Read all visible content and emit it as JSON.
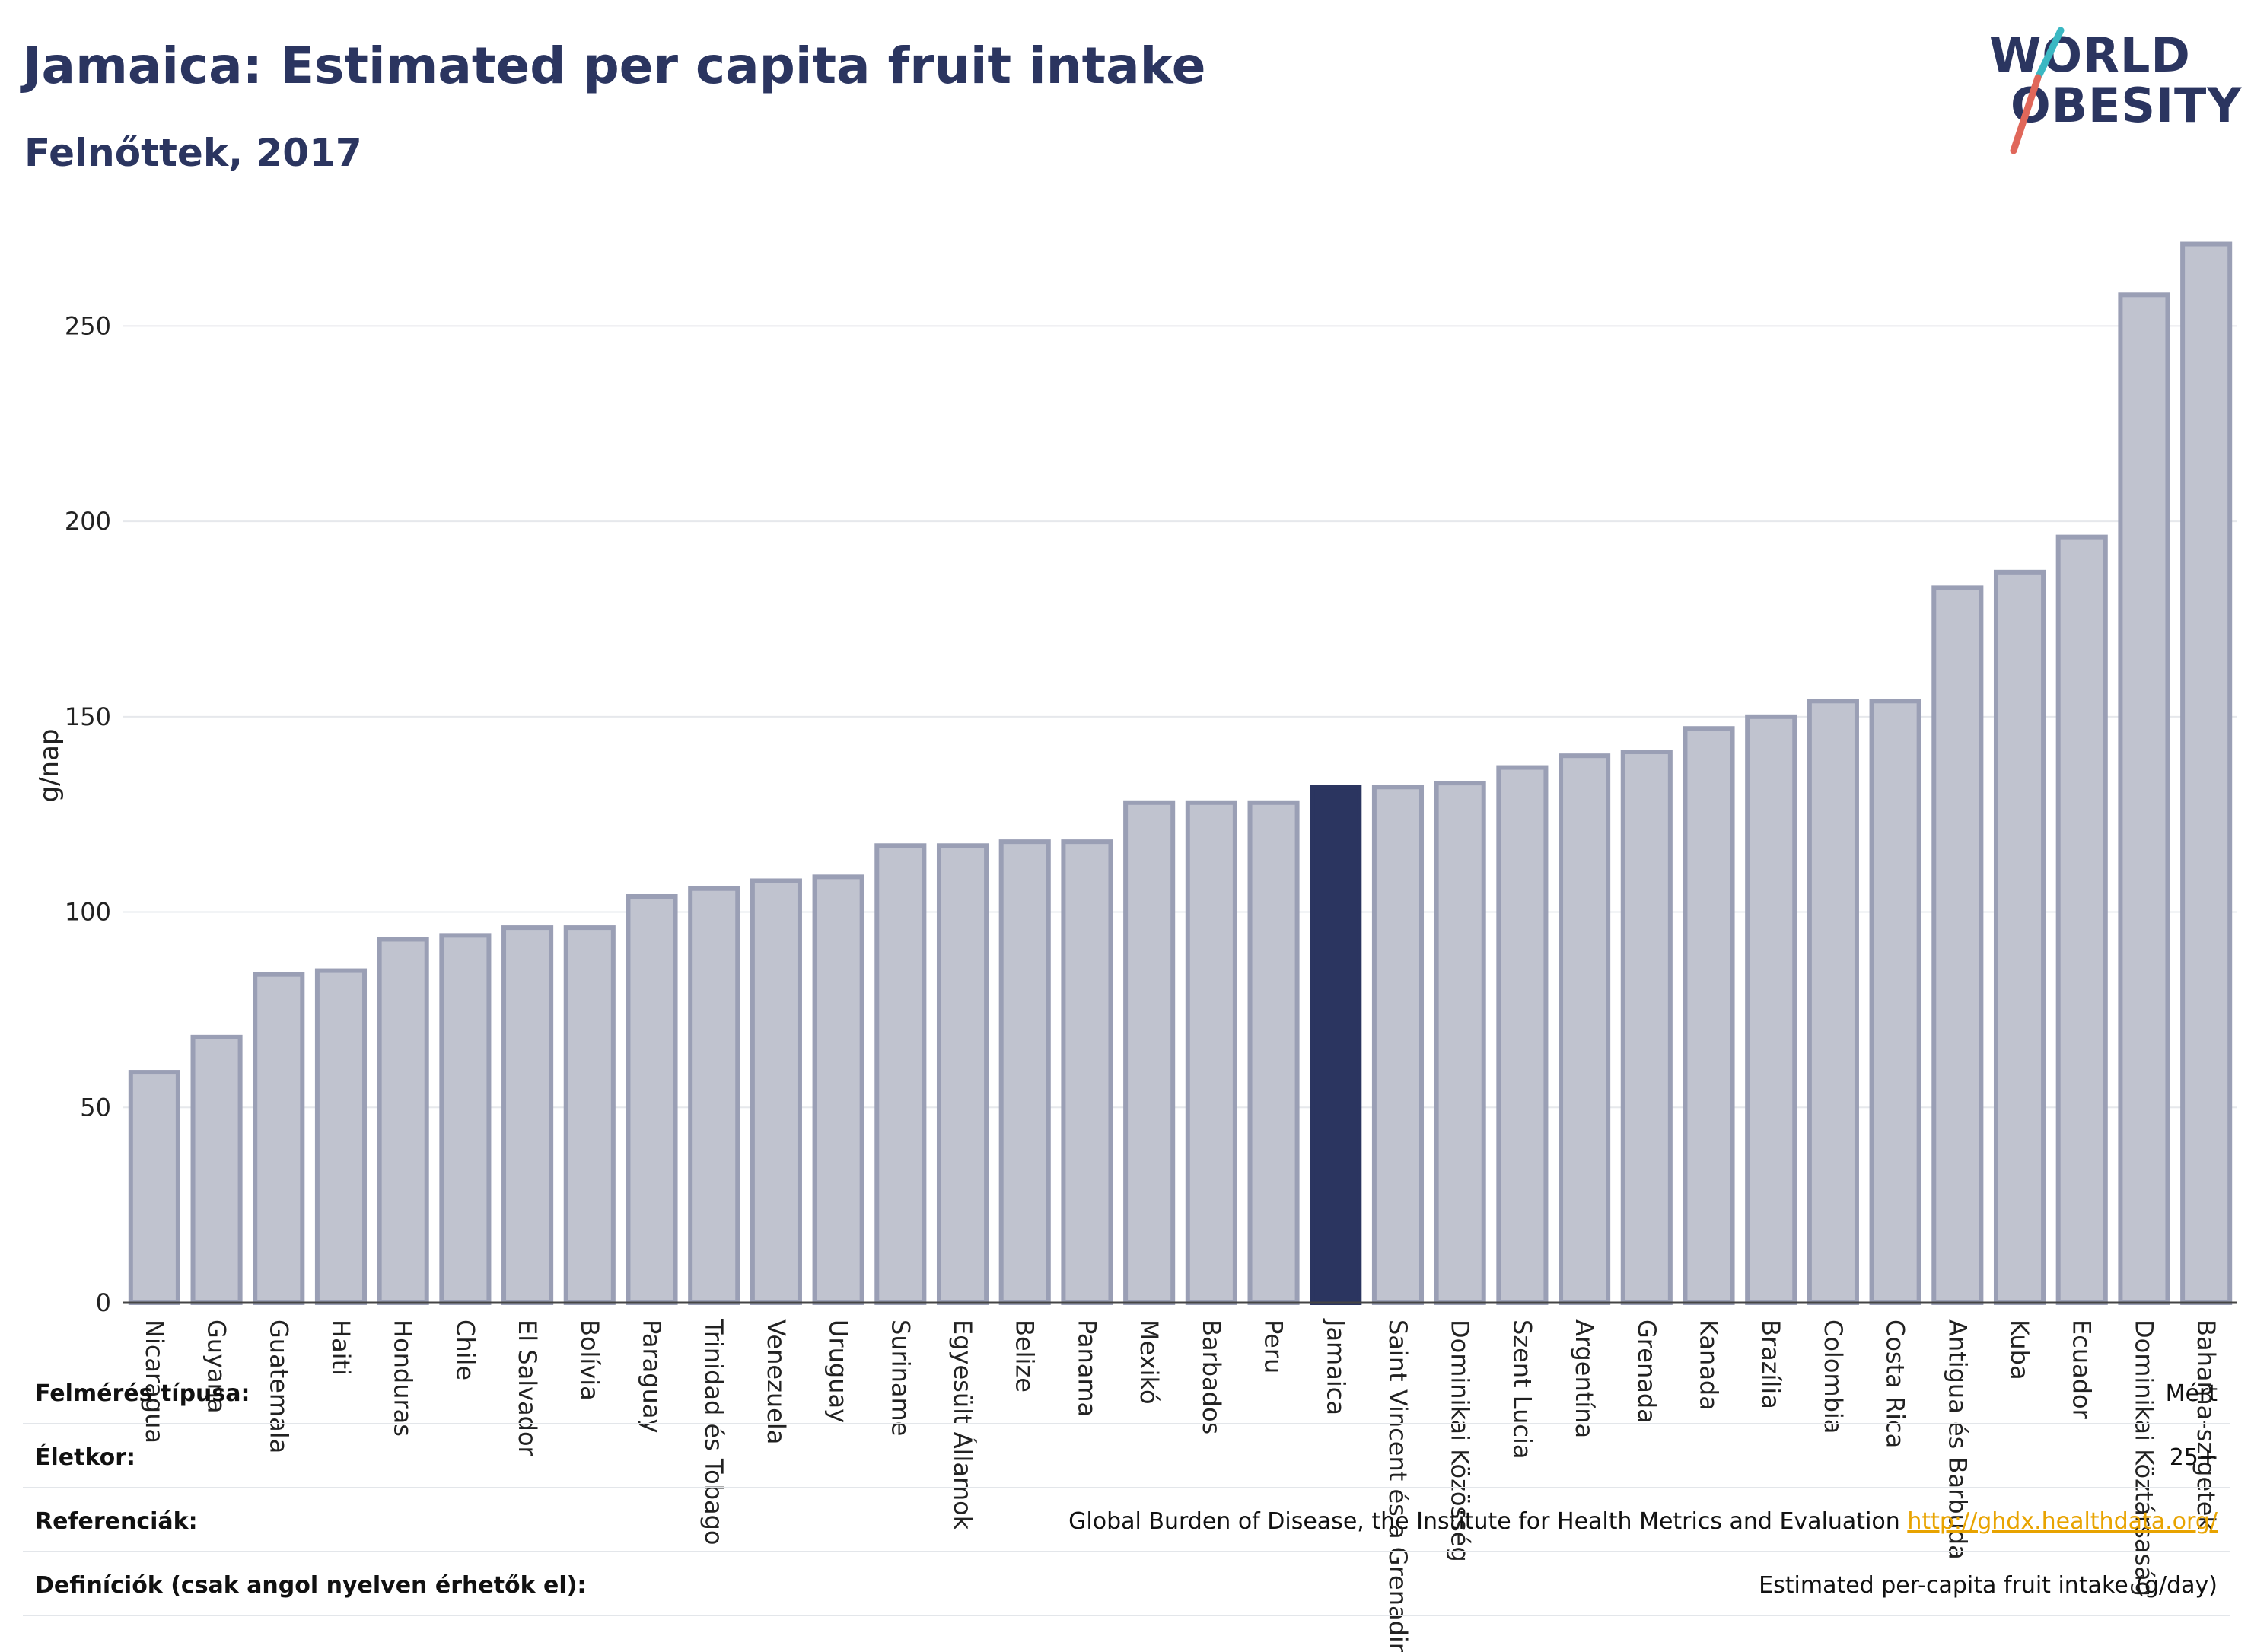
{
  "header": {
    "title": "Jamaica: Estimated per capita fruit intake",
    "subtitle": "Felnőttek, 2017"
  },
  "logo": {
    "line1": "WORLD",
    "line2": "OBESITY"
  },
  "colors": {
    "highlight_bar": "#2b3560",
    "bar": "#c0c3cf",
    "bar_stroke": "#9a9fb5",
    "logo_slash_teal": "#3bb8c3",
    "logo_slash_coral": "#e0675a"
  },
  "chart_data": {
    "type": "bar",
    "ylabel": "g/nap",
    "ylim": [
      0,
      275
    ],
    "yticks": [
      0,
      50,
      100,
      150,
      200,
      250
    ],
    "grid": true,
    "highlight": "Jamaica",
    "categories": [
      "Nicaragua",
      "Guyana",
      "Guatemala",
      "Haiti",
      "Honduras",
      "Chile",
      "El Salvador",
      "Bolívia",
      "Paraguay",
      "Trinidad és Tobago",
      "Venezuela",
      "Uruguay",
      "Suriname",
      "Egyesült Államok",
      "Belize",
      "Panama",
      "Mexikó",
      "Barbados",
      "Peru",
      "Jamaica",
      "Saint Vincent és a Grenadine",
      "Dominikai Közösség",
      "Szent Lucia",
      "Argentína",
      "Grenada",
      "Kanada",
      "Brazília",
      "Colombia",
      "Costa Rica",
      "Antigua és Barbuda",
      "Kuba",
      "Ecuador",
      "Dominikai Köztársaság",
      "Bahama-szigetek"
    ],
    "values": [
      59,
      68,
      84,
      85,
      93,
      94,
      96,
      96,
      104,
      106,
      108,
      109,
      117,
      117,
      118,
      118,
      128,
      128,
      128,
      132,
      132,
      133,
      137,
      140,
      141,
      147,
      150,
      154,
      154,
      183,
      187,
      196,
      258,
      271
    ]
  },
  "footer": {
    "rows": [
      {
        "label": "Felmérés típusa:",
        "value": "Mért",
        "link": ""
      },
      {
        "label": "Életkor:",
        "value": "25+",
        "link": ""
      },
      {
        "label": "Referenciák:",
        "value": "Global Burden of Disease, the Institute for Health Metrics and Evaluation ",
        "link": "http://ghdx.healthdata.org/"
      },
      {
        "label": "Definíciók (csak angol nyelven érhetők el):",
        "value": "Estimated per-capita fruit intake (g/day)",
        "link": ""
      }
    ]
  }
}
